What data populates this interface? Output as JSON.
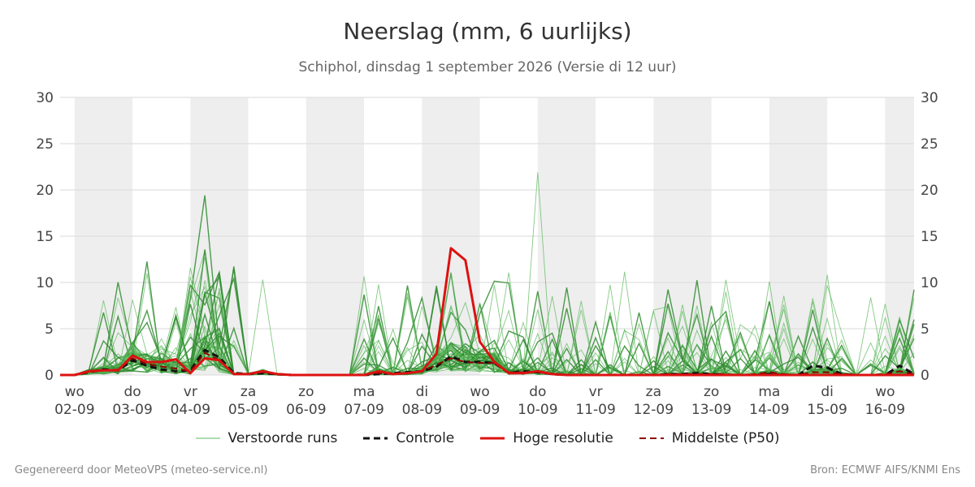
{
  "header": {
    "title": "Neerslag (mm, 6 uurlijks)",
    "subtitle": "Schiphol, dinsdag  1 september 2026 (Versie di 12 uur)"
  },
  "footer": {
    "left": "Gegenereerd door MeteoVPS (meteo-service.nl)",
    "right": "Bron: ECMWF AIFS/KNMI Ens"
  },
  "legend": [
    {
      "label": "Verstoorde runs",
      "color": "#5cb85c",
      "style": "thin"
    },
    {
      "label": "Controle",
      "color": "#111111",
      "style": "dashed"
    },
    {
      "label": "Hoge resolutie",
      "color": "#dd1111",
      "style": "solid"
    },
    {
      "label": "Middelste (P50)",
      "color": "#8b0000",
      "style": "dashed"
    }
  ],
  "chart_data": {
    "type": "line",
    "ylim": [
      0,
      30
    ],
    "yticks": [
      0,
      5,
      10,
      15,
      20,
      25,
      30
    ],
    "xlim": [
      "2026-09-01T18:00",
      "2026-09-16T12:00"
    ],
    "day_labels": [
      {
        "date": "2026-09-02",
        "day": "wo",
        "label": "02-09",
        "shaded": true
      },
      {
        "date": "2026-09-03",
        "day": "do",
        "label": "03-09",
        "shaded": false
      },
      {
        "date": "2026-09-04",
        "day": "vr",
        "label": "04-09",
        "shaded": true
      },
      {
        "date": "2026-09-05",
        "day": "za",
        "label": "05-09",
        "shaded": false
      },
      {
        "date": "2026-09-06",
        "day": "zo",
        "label": "06-09",
        "shaded": true
      },
      {
        "date": "2026-09-07",
        "day": "ma",
        "label": "07-09",
        "shaded": false
      },
      {
        "date": "2026-09-08",
        "day": "di",
        "label": "08-09",
        "shaded": true
      },
      {
        "date": "2026-09-09",
        "day": "wo",
        "label": "09-09",
        "shaded": false
      },
      {
        "date": "2026-09-10",
        "day": "do",
        "label": "10-09",
        "shaded": true
      },
      {
        "date": "2026-09-11",
        "day": "vr",
        "label": "11-09",
        "shaded": false
      },
      {
        "date": "2026-09-12",
        "day": "za",
        "label": "12-09",
        "shaded": true
      },
      {
        "date": "2026-09-13",
        "day": "zo",
        "label": "13-09",
        "shaded": false
      },
      {
        "date": "2026-09-14",
        "day": "ma",
        "label": "14-09",
        "shaded": true
      },
      {
        "date": "2026-09-15",
        "day": "di",
        "label": "15-09",
        "shaded": false
      },
      {
        "date": "2026-09-16",
        "day": "wo",
        "label": "16-09",
        "shaded": true
      }
    ],
    "x": [
      "2026-09-01T18:00",
      "2026-09-02T00:00",
      "2026-09-02T06:00",
      "2026-09-02T12:00",
      "2026-09-02T18:00",
      "2026-09-03T00:00",
      "2026-09-03T06:00",
      "2026-09-03T12:00",
      "2026-09-03T18:00",
      "2026-09-04T00:00",
      "2026-09-04T06:00",
      "2026-09-04T12:00",
      "2026-09-04T18:00",
      "2026-09-05T00:00",
      "2026-09-05T06:00",
      "2026-09-05T12:00",
      "2026-09-05T18:00",
      "2026-09-06T00:00",
      "2026-09-06T06:00",
      "2026-09-06T12:00",
      "2026-09-06T18:00",
      "2026-09-07T00:00",
      "2026-09-07T06:00",
      "2026-09-07T12:00",
      "2026-09-07T18:00",
      "2026-09-08T00:00",
      "2026-09-08T06:00",
      "2026-09-08T12:00",
      "2026-09-08T18:00",
      "2026-09-09T00:00",
      "2026-09-09T06:00",
      "2026-09-09T12:00",
      "2026-09-09T18:00",
      "2026-09-10T00:00",
      "2026-09-10T06:00",
      "2026-09-10T12:00",
      "2026-09-10T18:00",
      "2026-09-11T00:00",
      "2026-09-11T06:00",
      "2026-09-11T12:00",
      "2026-09-11T18:00",
      "2026-09-12T00:00",
      "2026-09-12T06:00",
      "2026-09-12T12:00",
      "2026-09-12T18:00",
      "2026-09-13T00:00",
      "2026-09-13T06:00",
      "2026-09-13T12:00",
      "2026-09-13T18:00",
      "2026-09-14T00:00",
      "2026-09-14T06:00",
      "2026-09-14T12:00",
      "2026-09-14T18:00",
      "2026-09-15T00:00",
      "2026-09-15T06:00",
      "2026-09-15T12:00",
      "2026-09-15T18:00",
      "2026-09-16T00:00",
      "2026-09-16T06:00",
      "2026-09-16T12:00"
    ],
    "series": [
      {
        "name": "Hoge resolutie",
        "color": "#dd1111",
        "values": [
          0,
          0,
          0.4,
          0.5,
          0.5,
          2.1,
          1.4,
          1.4,
          1.7,
          0.2,
          1.8,
          1.6,
          0.1,
          0.1,
          0.4,
          0.1,
          0,
          0,
          0,
          0,
          0,
          0,
          0.4,
          0.1,
          0.2,
          0.4,
          2.3,
          13.7,
          12.4,
          3.6,
          1.4,
          0.2,
          0.2,
          0.4,
          0.1,
          0,
          0,
          0,
          0,
          0,
          0,
          0,
          0,
          0,
          0,
          0,
          0,
          0,
          0,
          0,
          0,
          0,
          0,
          0,
          0,
          0,
          0,
          0,
          0,
          0
        ]
      },
      {
        "name": "Controle",
        "color": "#111111",
        "values": [
          0,
          0,
          0.3,
          0.6,
          0.5,
          1.6,
          1,
          0.6,
          0.4,
          0.5,
          2.7,
          1.9,
          0.2,
          0.1,
          0.2,
          0.1,
          0,
          0,
          0,
          0,
          0,
          0,
          0.1,
          0.2,
          0.3,
          0.4,
          0.9,
          2,
          1.4,
          1.4,
          1.3,
          0.2,
          0.4,
          0.3,
          0.1,
          0,
          0,
          0,
          0,
          0,
          0,
          0,
          0.1,
          0.1,
          0.2,
          0.1,
          0,
          0,
          0,
          0.1,
          0,
          0,
          1,
          0.8,
          0.1,
          0,
          0,
          0,
          1,
          0.1
        ]
      },
      {
        "name": "Middelste (P50)",
        "color": "#8b0000",
        "values": [
          0,
          0,
          0.3,
          0.5,
          0.6,
          1.8,
          1.2,
          0.9,
          0.7,
          0.4,
          2.4,
          1.6,
          0.1,
          0.1,
          0.3,
          0.1,
          0,
          0,
          0,
          0,
          0,
          0,
          0.2,
          0.1,
          0.2,
          0.4,
          1.1,
          1.8,
          1.4,
          1.3,
          1.3,
          0.3,
          0.3,
          0.3,
          0.1,
          0,
          0,
          0,
          0,
          0,
          0,
          0,
          0.1,
          0.1,
          0.1,
          0.1,
          0.1,
          0,
          0.1,
          0.3,
          0.1,
          0,
          0.3,
          0.3,
          0.1,
          0,
          0,
          0.1,
          0.4,
          0.1
        ]
      }
    ],
    "ensemble_count": 50,
    "ensemble_color": "#3a9d3a"
  }
}
